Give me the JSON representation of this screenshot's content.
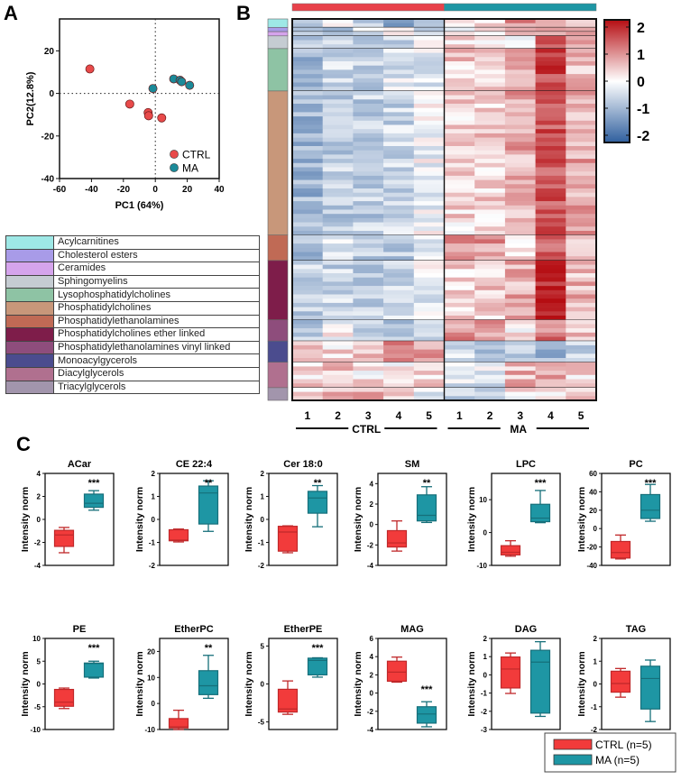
{
  "panels": {
    "A": "A",
    "B": "B",
    "C": "C"
  },
  "lipid_classes": [
    {
      "name": "Acylcarnitines",
      "color": "#9ee8e6",
      "rows": 2
    },
    {
      "name": "Cholesterol esters",
      "color": "#a89be8",
      "rows": 1
    },
    {
      "name": "Ceramides",
      "color": "#d5a4ec",
      "rows": 1
    },
    {
      "name": "Sphingomyelins",
      "color": "#c5ccd2",
      "rows": 3
    },
    {
      "name": "Lysophosphatidylcholines",
      "color": "#8ec3a4",
      "rows": 10
    },
    {
      "name": "Phosphatidylcholines",
      "color": "#c8977a",
      "rows": 34
    },
    {
      "name": "Phosphatidylethanolamines",
      "color": "#c06a55",
      "rows": 6
    },
    {
      "name": "Phosphatidylcholines ether linked",
      "color": "#7e1d4a",
      "rows": 14
    },
    {
      "name": "Phosphatidylethanolamines vinyl linked",
      "color": "#8e4d7c",
      "rows": 5
    },
    {
      "name": "Monoacylgycerols",
      "color": "#4b4c8e",
      "rows": 5
    },
    {
      "name": "Diacylglycerols",
      "color": "#b0708f",
      "rows": 6
    },
    {
      "name": "Triacylglycerols",
      "color": "#a295ac",
      "rows": 3
    }
  ],
  "chart_data": [
    {
      "type": "scatter",
      "panel": "A",
      "title": "",
      "xlabel": "PC1 (64%)",
      "ylabel": "PC2(12.8%)",
      "xlim": [
        -60,
        40
      ],
      "ylim": [
        -40,
        35
      ],
      "xticks": [
        -60,
        -40,
        -20,
        0,
        20,
        40
      ],
      "yticks": [
        -40,
        -20,
        0,
        20
      ],
      "legend": "bottom-right",
      "reference_lines": {
        "x": 0,
        "y": 0,
        "style": "dotted"
      },
      "series": [
        {
          "name": "CTRL",
          "color": "#e84a4a",
          "points": [
            [
              -41,
              11.5
            ],
            [
              -16,
              -5
            ],
            [
              -4.5,
              -9
            ],
            [
              -4.2,
              -10.5
            ],
            [
              4,
              -11.5
            ]
          ]
        },
        {
          "name": "MA",
          "color": "#1b8a99",
          "points": [
            [
              -1.5,
              2.3
            ],
            [
              11.5,
              6.8
            ],
            [
              15.5,
              6.2
            ],
            [
              16.5,
              5.5
            ],
            [
              21.5,
              3.8
            ]
          ]
        }
      ]
    },
    {
      "type": "heatmap",
      "panel": "B",
      "groups": [
        {
          "name": "CTRL",
          "color": "#e8414a",
          "samples": [
            "1",
            "2",
            "3",
            "4",
            "5"
          ]
        },
        {
          "name": "MA",
          "color": "#1e96a4",
          "samples": [
            "1",
            "2",
            "3",
            "4",
            "5"
          ]
        }
      ],
      "colorbar": {
        "min": -2,
        "max": 2,
        "ticks": [
          "2",
          "1",
          "0",
          "-1",
          "-2"
        ],
        "low_color": "#2f5f9e",
        "mid_color": "#ffffff",
        "high_color": "#b50d12"
      },
      "row_classes_ref": "lipid_classes",
      "class_mean_zscores": {
        "CTRL": [
          [
            -0.6,
            -0.1,
            -0.5,
            -1.0,
            -0.7
          ],
          [
            -0.5,
            -0.6,
            -0.4,
            -0.3,
            -0.4
          ],
          [
            -0.7,
            -0.6,
            -0.3,
            -0.2,
            -0.3
          ],
          [
            -0.8,
            -0.4,
            -0.5,
            -0.6,
            0.2
          ],
          [
            -0.8,
            -0.4,
            -0.6,
            -0.3,
            -0.2
          ],
          [
            -0.9,
            -0.6,
            -0.6,
            -0.5,
            -0.1
          ],
          [
            -0.8,
            -0.2,
            -0.6,
            -0.7,
            -0.1
          ],
          [
            -0.6,
            -0.5,
            -0.6,
            -0.5,
            -0.2
          ],
          [
            -0.7,
            0.0,
            -0.6,
            -0.6,
            -0.3
          ],
          [
            0.3,
            0.3,
            0.6,
            0.9,
            0.7
          ],
          [
            0.3,
            0.5,
            0.2,
            0.2,
            0.4
          ],
          [
            0.3,
            0.7,
            0.6,
            0.2,
            -0.2
          ]
        ],
        "MA": [
          [
            0.3,
            0.4,
            0.9,
            0.6,
            0.4
          ],
          [
            -0.2,
            0.0,
            1.0,
            0.9,
            0.7
          ],
          [
            0.5,
            -0.1,
            0.8,
            0.9,
            0.6
          ],
          [
            0.3,
            0.3,
            0.0,
            1.4,
            0.8
          ],
          [
            0.4,
            0.3,
            0.6,
            1.6,
            0.5
          ],
          [
            0.3,
            0.4,
            0.7,
            1.4,
            0.7
          ],
          [
            0.9,
            0.8,
            0.3,
            1.2,
            0.3
          ],
          [
            0.3,
            0.4,
            0.7,
            1.7,
            0.6
          ],
          [
            0.9,
            0.7,
            0.1,
            1.1,
            0.4
          ],
          [
            -0.4,
            -0.6,
            -0.5,
            -0.9,
            -0.6
          ],
          [
            -0.3,
            -0.3,
            0.6,
            0.7,
            0.3
          ],
          [
            -0.5,
            -0.6,
            0.2,
            0.2,
            0.4
          ]
        ]
      },
      "group_label_order": [
        "CTRL",
        "MA"
      ]
    },
    {
      "type": "box",
      "panel": "C",
      "ylabel": "Intensity norm",
      "legend": "bottom-right",
      "legend_entries": [
        {
          "name": "CTRL (n=5)",
          "color": "#f23b3b"
        },
        {
          "name": "MA (n=5)",
          "color": "#1e96a4"
        }
      ],
      "plots": [
        {
          "title": "ACar",
          "ylim": [
            -4,
            4
          ],
          "yticks": [
            "-4",
            "-2",
            "0",
            "2",
            "4"
          ],
          "significance": "***",
          "sig_over": "MA",
          "CTRL": {
            "min": -2.9,
            "q1": -2.35,
            "median": -1.35,
            "q3": -0.95,
            "max": -0.7
          },
          "MA": {
            "min": 0.8,
            "q1": 1.05,
            "median": 1.4,
            "q3": 2.2,
            "max": 2.5
          }
        },
        {
          "title": "CE 22:4",
          "ylim": [
            -2,
            2
          ],
          "yticks": [
            "-2",
            "-1",
            "0",
            "1",
            "2"
          ],
          "significance": "**",
          "sig_over": "MA",
          "CTRL": {
            "min": -0.98,
            "q1": -0.93,
            "median": -0.9,
            "q3": -0.45,
            "max": -0.42
          },
          "MA": {
            "min": -0.52,
            "q1": -0.2,
            "median": 1.15,
            "q3": 1.45,
            "max": 1.68
          }
        },
        {
          "title": "Cer 18:0",
          "ylim": [
            -2,
            2
          ],
          "yticks": [
            "-2",
            "-1",
            "0",
            "1",
            "2"
          ],
          "significance": "**",
          "sig_over": "MA",
          "CTRL": {
            "min": -1.45,
            "q1": -1.38,
            "median": -0.55,
            "q3": -0.3,
            "max": -0.28
          },
          "MA": {
            "min": -0.32,
            "q1": 0.27,
            "median": 0.93,
            "q3": 1.22,
            "max": 1.47
          }
        },
        {
          "title": "SM",
          "ylim": [
            -4,
            5
          ],
          "yticks": [
            "-4",
            "-2",
            "0",
            "2",
            "4"
          ],
          "significance": "**",
          "sig_over": "MA",
          "CTRL": {
            "min": -2.6,
            "q1": -2.2,
            "median": -1.8,
            "q3": -0.6,
            "max": 0.35
          },
          "MA": {
            "min": 0.2,
            "q1": 0.35,
            "median": 0.9,
            "q3": 2.9,
            "max": 3.7
          }
        },
        {
          "title": "LPC",
          "ylim": [
            -10,
            18
          ],
          "yticks": [
            "-10",
            "0",
            "10"
          ],
          "significance": "***",
          "sig_over": "MA",
          "CTRL": {
            "min": -7.2,
            "q1": -6.8,
            "median": -6.0,
            "q3": -4.0,
            "max": -2.5
          },
          "MA": {
            "min": 3.0,
            "q1": 3.3,
            "median": 4.4,
            "q3": 8.6,
            "max": 12.8
          }
        },
        {
          "title": "PC",
          "ylim": [
            -40,
            60
          ],
          "yticks": [
            "-40",
            "-20",
            "0",
            "20",
            "40",
            "60"
          ],
          "significance": "***",
          "sig_over": "MA",
          "CTRL": {
            "min": -33,
            "q1": -32,
            "median": -26,
            "q3": -14,
            "max": -7
          },
          "MA": {
            "min": 8,
            "q1": 11,
            "median": 20,
            "q3": 37,
            "max": 48
          }
        },
        {
          "title": "PE",
          "ylim": [
            -10,
            10
          ],
          "yticks": [
            "-10",
            "-5",
            "0",
            "5",
            "10"
          ],
          "significance": "***",
          "sig_over": "MA",
          "CTRL": {
            "min": -5.4,
            "q1": -4.9,
            "median": -4.0,
            "q3": -1.2,
            "max": -0.9
          },
          "MA": {
            "min": 1.3,
            "q1": 1.5,
            "median": 4.5,
            "q3": 4.6,
            "max": 5.0
          }
        },
        {
          "title": "EtherPC",
          "ylim": [
            -10,
            25
          ],
          "yticks": [
            "-10",
            "0",
            "10",
            "20"
          ],
          "significance": "**",
          "sig_over": "MA",
          "CTRL": {
            "min": -10,
            "q1": -9.4,
            "median": -9.0,
            "q3": -5.8,
            "max": -2.6
          },
          "MA": {
            "min": 2.0,
            "q1": 3.4,
            "median": 6.8,
            "q3": 12.6,
            "max": 18.5
          }
        },
        {
          "title": "EtherPE",
          "ylim": [
            -6,
            6
          ],
          "yticks": [
            "-5",
            "0",
            "5"
          ],
          "significance": "***",
          "sig_over": "MA",
          "CTRL": {
            "min": -4.0,
            "q1": -3.7,
            "median": -3.3,
            "q3": -0.7,
            "max": 0.4
          },
          "MA": {
            "min": 0.9,
            "q1": 1.2,
            "median": 3.1,
            "q3": 3.4,
            "max": 3.45
          }
        },
        {
          "title": "MAG",
          "ylim": [
            -4,
            6
          ],
          "yticks": [
            "-4",
            "-2",
            "0",
            "2",
            "4",
            "6"
          ],
          "significance": "***",
          "sig_over": "MA",
          "CTRL": {
            "min": 1.2,
            "q1": 1.3,
            "median": 2.3,
            "q3": 3.5,
            "max": 3.95
          },
          "MA": {
            "min": -3.7,
            "q1": -3.3,
            "median": -2.3,
            "q3": -1.5,
            "max": -0.95
          }
        },
        {
          "title": "DAG",
          "ylim": [
            -3,
            2
          ],
          "yticks": [
            "-3",
            "-2",
            "-1",
            "0",
            "1",
            "2"
          ],
          "significance": "",
          "sig_over": "",
          "CTRL": {
            "min": -1.02,
            "q1": -0.72,
            "median": 0.32,
            "q3": 0.98,
            "max": 1.2
          },
          "MA": {
            "min": -2.28,
            "q1": -2.1,
            "median": 0.7,
            "q3": 1.35,
            "max": 1.82
          }
        },
        {
          "title": "TAG",
          "ylim": [
            -2,
            2
          ],
          "yticks": [
            "-2",
            "-1",
            "0",
            "1",
            "2"
          ],
          "significance": "",
          "sig_over": "",
          "CTRL": {
            "min": -0.58,
            "q1": -0.36,
            "median": 0.02,
            "q3": 0.56,
            "max": 0.68
          },
          "MA": {
            "min": -1.65,
            "q1": -1.1,
            "median": 0.24,
            "q3": 0.78,
            "max": 1.05
          }
        }
      ]
    }
  ]
}
